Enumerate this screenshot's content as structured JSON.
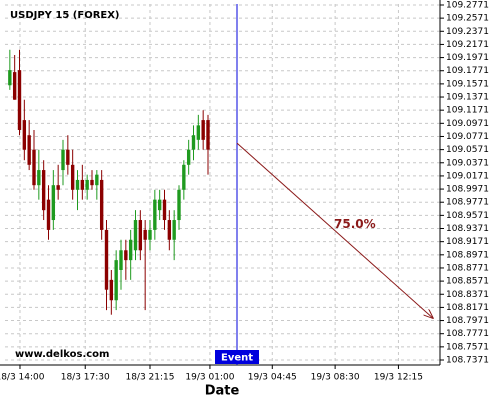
{
  "chart_data": {
    "type": "candlestick",
    "title": "USDJPY 15 (FOREX)",
    "watermark": "www.delkos.com",
    "x_label": "Date",
    "up_color": "#1f9a1f",
    "down_color": "#8b0000",
    "grid": true,
    "xlim": [
      0,
      90
    ],
    "xticks": [
      {
        "value": 3.1,
        "label": "18/3 14:00"
      },
      {
        "value": 16.6,
        "label": "18/3 17:30"
      },
      {
        "value": 30,
        "label": "18/3 21:15"
      },
      {
        "value": 42.4,
        "label": "19/3 01:00"
      },
      {
        "value": 55.3,
        "label": "19/3 04:45"
      },
      {
        "value": 68.3,
        "label": "19/3 08:30"
      },
      {
        "value": 81.4,
        "label": "19/3 12:15"
      }
    ],
    "ylim": [
      108.7295,
      109.2786
    ],
    "yticks": [
      109.2771,
      109.2571,
      109.2371,
      109.2171,
      109.1971,
      109.1771,
      109.1571,
      109.1371,
      109.1171,
      109.0971,
      109.0771,
      109.0571,
      109.0371,
      109.0171,
      108.9971,
      108.9771,
      108.9571,
      108.9371,
      108.9171,
      108.8971,
      108.8771,
      108.8571,
      108.8371,
      108.8171,
      108.7971,
      108.7771,
      108.7571,
      108.7371
    ],
    "open": [
      109.155,
      109.175,
      109.178,
      109.102,
      109.079,
      109.057,
      109.003,
      109.026,
      108.981,
      108.95,
      109.003,
      109.026,
      109.057,
      109.034,
      108.996,
      109.011,
      108.996,
      109.011,
      109.003,
      109.011,
      108.935,
      108.859,
      108.828,
      108.874,
      108.904,
      108.889,
      108.904,
      108.95,
      108.935,
      108.92,
      108.935,
      108.965,
      108.981,
      108.95,
      108.92,
      108.95,
      108.996,
      109.034,
      109.057,
      109.072,
      109.102,
      109.102
    ],
    "high": [
      109.209,
      109.201,
      109.209,
      109.133,
      109.102,
      109.087,
      109.057,
      109.041,
      109.003,
      109.026,
      109.034,
      109.072,
      109.079,
      109.057,
      109.026,
      109.034,
      109.019,
      109.026,
      109.026,
      109.026,
      108.95,
      108.874,
      108.904,
      108.92,
      108.92,
      108.935,
      108.965,
      108.965,
      108.95,
      108.95,
      108.996,
      108.996,
      108.996,
      108.965,
      108.965,
      109.003,
      109.041,
      109.072,
      109.094,
      109.11,
      109.117,
      109.11
    ],
    "low": [
      109.148,
      109.133,
      109.079,
      109.041,
      109.026,
      108.996,
      108.981,
      108.95,
      108.92,
      108.935,
      108.981,
      109.003,
      109.019,
      108.981,
      108.965,
      108.981,
      108.981,
      108.996,
      108.981,
      108.92,
      108.813,
      108.806,
      108.813,
      108.844,
      108.859,
      108.859,
      108.889,
      108.889,
      108.813,
      108.904,
      108.92,
      108.95,
      108.935,
      108.904,
      108.889,
      108.935,
      108.981,
      109.019,
      109.041,
      109.057,
      109.057,
      109.019
    ],
    "close": [
      109.178,
      109.133,
      109.087,
      109.057,
      109.034,
      109.003,
      109.026,
      108.965,
      108.935,
      109.003,
      108.996,
      109.057,
      109.034,
      108.996,
      109.011,
      108.996,
      109.011,
      109.003,
      109.019,
      108.935,
      108.844,
      108.828,
      108.889,
      108.904,
      108.889,
      108.92,
      108.95,
      108.904,
      108.92,
      108.935,
      108.981,
      108.981,
      108.95,
      108.92,
      108.95,
      108.996,
      109.034,
      109.057,
      109.079,
      109.094,
      109.072,
      109.057
    ],
    "event": {
      "label": "Event",
      "x": 48,
      "color": "#0000dd"
    },
    "projection": {
      "label": "75.0%",
      "x": [
        48,
        88.5
      ],
      "y": [
        109.067,
        108.801
      ],
      "color": "#8b1a1a"
    }
  }
}
